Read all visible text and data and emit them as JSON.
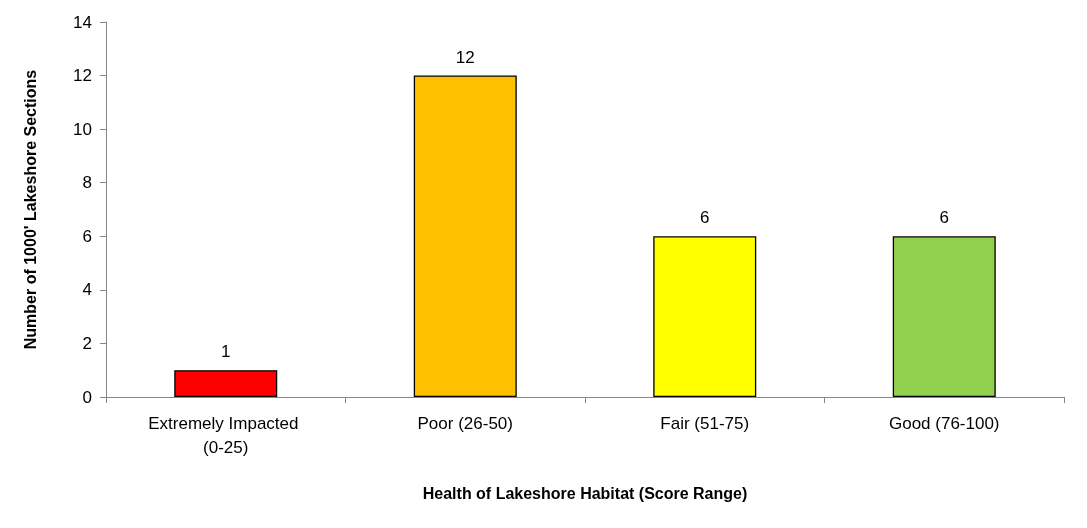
{
  "chart_data": {
    "type": "bar",
    "xlabel": "Health of Lakeshore Habitat (Score Range)",
    "ylabel": "Number of 1000' Lakeshore Sections",
    "categories": [
      "Extremely Impacted (0-25)",
      "Poor (26-50)",
      "Fair (51-75)",
      "Good (76-100)"
    ],
    "values": [
      1,
      12,
      6,
      6
    ],
    "colors": [
      "#ff0000",
      "#ffc000",
      "#ffff00",
      "#92d050"
    ],
    "ylim": [
      0,
      14
    ],
    "yticks": [
      0,
      2,
      4,
      6,
      8,
      10,
      12,
      14
    ],
    "grid": false,
    "data_labels": true
  }
}
